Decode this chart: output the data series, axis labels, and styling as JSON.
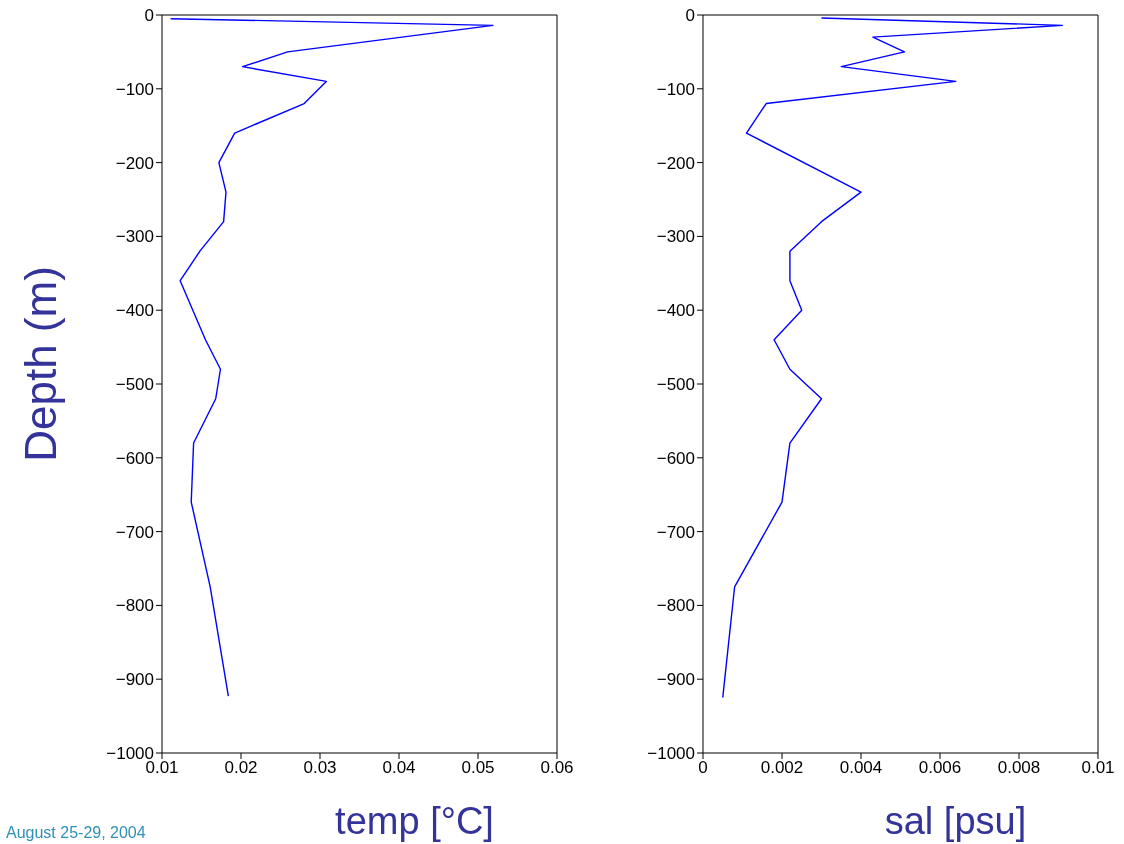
{
  "chart_data": [
    {
      "type": "line",
      "xlabel": "temp [°C]",
      "ylabel": "Depth (m)",
      "xlim": [
        0.01,
        0.06
      ],
      "xticks": [
        0.01,
        0.02,
        0.03,
        0.04,
        0.05,
        0.06
      ],
      "ylim": [
        -1000,
        0
      ],
      "yticks": [
        -1000,
        -900,
        -800,
        -700,
        -600,
        -500,
        -400,
        -300,
        -200,
        -100,
        0
      ],
      "series": [
        {
          "color": "#0000ff",
          "x": [
            0.0111,
            0.0519,
            0.0259,
            0.0202,
            0.0308,
            0.028,
            0.0192,
            0.0172,
            0.0181,
            0.0178,
            0.0148,
            0.0123,
            0.0155,
            0.0174,
            0.0168,
            0.014,
            0.0137,
            0.0161,
            0.0184
          ],
          "values": [
            -5,
            -14,
            -50,
            -70,
            -90,
            -120,
            -160,
            -200,
            -240,
            -280,
            -320,
            -360,
            -440,
            -480,
            -520,
            -580,
            -660,
            -775,
            -923
          ]
        }
      ],
      "annotations": [
        "August 25-29, 2004"
      ]
    },
    {
      "type": "line",
      "xlabel": "sal [psu]",
      "xlim": [
        0,
        0.01
      ],
      "xticks": [
        0,
        0.002,
        0.004,
        0.006,
        0.008,
        0.01
      ],
      "ylim": [
        -1000,
        0
      ],
      "yticks": [
        -1000,
        -900,
        -800,
        -700,
        -600,
        -500,
        -400,
        -300,
        -200,
        -100,
        0
      ],
      "series": [
        {
          "color": "#0000ff",
          "x": [
            0.003,
            0.0091,
            0.0043,
            0.0051,
            0.0035,
            0.0064,
            0.0016,
            0.0011,
            0.004,
            0.003,
            0.0022,
            0.0022,
            0.0025,
            0.0018,
            0.0022,
            0.003,
            0.0022,
            0.002,
            0.0008,
            0.0005
          ],
          "values": [
            -4,
            -14,
            -30,
            -50,
            -70,
            -90,
            -120,
            -160,
            -240,
            -280,
            -320,
            -360,
            -400,
            -440,
            -480,
            -520,
            -580,
            -660,
            -775,
            -925
          ]
        }
      ]
    }
  ]
}
